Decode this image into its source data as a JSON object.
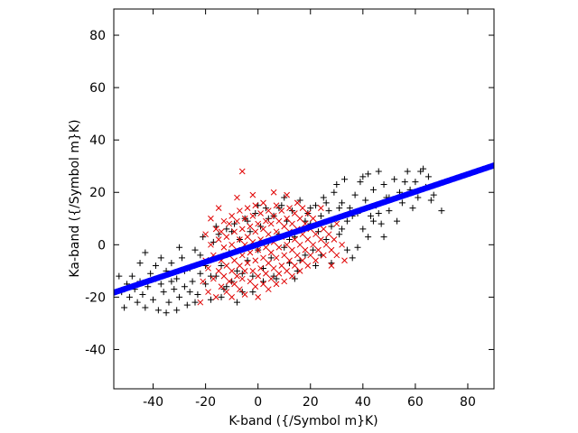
{
  "chart_data": {
    "type": "scatter",
    "title": "",
    "xlabel": "K-band ({/Symbol m}K)",
    "ylabel": "Ka-band ({/Symbol m}K)",
    "xlim": [
      -55,
      90
    ],
    "ylim": [
      -55,
      90
    ],
    "xticks": [
      -40,
      -20,
      0,
      20,
      40,
      60,
      80
    ],
    "yticks": [
      -40,
      -20,
      0,
      20,
      40,
      60,
      80
    ],
    "grid": false,
    "legend": "none",
    "series": [
      {
        "marker": "plus",
        "color": "#000000",
        "points": [
          [
            -52,
            -18
          ],
          [
            -50,
            -15
          ],
          [
            -49,
            -20
          ],
          [
            -48,
            -12
          ],
          [
            -47,
            -17
          ],
          [
            -46,
            -22
          ],
          [
            -45,
            -14
          ],
          [
            -44,
            -19
          ],
          [
            -43,
            -24
          ],
          [
            -42,
            -16
          ],
          [
            -41,
            -11
          ],
          [
            -40,
            -21
          ],
          [
            -39,
            -8
          ],
          [
            -38,
            -25
          ],
          [
            -37,
            -15
          ],
          [
            -36,
            -18
          ],
          [
            -35,
            -10
          ],
          [
            -34,
            -22
          ],
          [
            -33,
            -7
          ],
          [
            -32,
            -17
          ],
          [
            -31,
            -13
          ],
          [
            -30,
            -20
          ],
          [
            -29,
            -5
          ],
          [
            -28,
            -16
          ],
          [
            -27,
            -23
          ],
          [
            -26,
            -9
          ],
          [
            -25,
            -14
          ],
          [
            -24,
            -2
          ],
          [
            -23,
            -19
          ],
          [
            -22,
            -11
          ],
          [
            -21,
            3
          ],
          [
            -20,
            -15
          ],
          [
            -19,
            -6
          ],
          [
            -18,
            -21
          ],
          [
            -17,
            1
          ],
          [
            -16,
            -12
          ],
          [
            -15,
            4
          ],
          [
            -14,
            -8
          ],
          [
            -13,
            -17
          ],
          [
            -12,
            6
          ],
          [
            -11,
            -3
          ],
          [
            -10,
            -14
          ],
          [
            -9,
            8
          ],
          [
            -8,
            -10
          ],
          [
            -7,
            2
          ],
          [
            -6,
            -18
          ],
          [
            -5,
            10
          ],
          [
            -4,
            -6
          ],
          [
            -3,
            5
          ],
          [
            -2,
            -12
          ],
          [
            -1,
            12
          ],
          [
            0,
            -2
          ],
          [
            1,
            7
          ],
          [
            2,
            -9
          ],
          [
            3,
            14
          ],
          [
            4,
            1
          ],
          [
            5,
            -5
          ],
          [
            6,
            11
          ],
          [
            7,
            -13
          ],
          [
            8,
            4
          ],
          [
            9,
            15
          ],
          [
            10,
            -1
          ],
          [
            11,
            9
          ],
          [
            12,
            -7
          ],
          [
            13,
            13
          ],
          [
            14,
            3
          ],
          [
            15,
            -10
          ],
          [
            16,
            17
          ],
          [
            17,
            6
          ],
          [
            18,
            -4
          ],
          [
            19,
            12
          ],
          [
            20,
            8
          ],
          [
            21,
            -2
          ],
          [
            22,
            15
          ],
          [
            23,
            5
          ],
          [
            24,
            11
          ],
          [
            25,
            18
          ],
          [
            26,
            2
          ],
          [
            27,
            13
          ],
          [
            28,
            7
          ],
          [
            29,
            20
          ],
          [
            30,
            10
          ],
          [
            31,
            4
          ],
          [
            32,
            16
          ],
          [
            33,
            25
          ],
          [
            34,
            9
          ],
          [
            35,
            14
          ],
          [
            36,
            -5
          ],
          [
            37,
            19
          ],
          [
            38,
            12
          ],
          [
            39,
            24
          ],
          [
            40,
            6
          ],
          [
            41,
            17
          ],
          [
            42,
            27
          ],
          [
            43,
            11
          ],
          [
            44,
            21
          ],
          [
            45,
            15
          ],
          [
            46,
            28
          ],
          [
            47,
            8
          ],
          [
            48,
            23
          ],
          [
            49,
            18
          ],
          [
            50,
            13
          ],
          [
            52,
            25
          ],
          [
            54,
            20
          ],
          [
            55,
            16
          ],
          [
            57,
            28
          ],
          [
            58,
            21
          ],
          [
            60,
            24
          ],
          [
            61,
            18
          ],
          [
            63,
            29
          ],
          [
            64,
            22
          ],
          [
            65,
            26
          ],
          [
            67,
            19
          ],
          [
            70,
            13
          ],
          [
            -53,
            -12
          ],
          [
            -51,
            -24
          ],
          [
            -45,
            -7
          ],
          [
            -43,
            -3
          ],
          [
            -39,
            -13
          ],
          [
            -37,
            -5
          ],
          [
            -35,
            -26
          ],
          [
            -33,
            -14
          ],
          [
            -31,
            -25
          ],
          [
            -30,
            -1
          ],
          [
            -28,
            -10
          ],
          [
            -26,
            -18
          ],
          [
            -24,
            -22
          ],
          [
            -22,
            -4
          ],
          [
            -20,
            -8
          ],
          [
            -18,
            -12
          ],
          [
            -16,
            7
          ],
          [
            -14,
            -20
          ],
          [
            -12,
            -16
          ],
          [
            -10,
            5
          ],
          [
            -8,
            -22
          ],
          [
            -6,
            -11
          ],
          [
            -4,
            9
          ],
          [
            -2,
            -18
          ],
          [
            0,
            15
          ],
          [
            2,
            -14
          ],
          [
            4,
            10
          ],
          [
            6,
            -12
          ],
          [
            8,
            14
          ],
          [
            10,
            18
          ],
          [
            12,
            2
          ],
          [
            14,
            -13
          ],
          [
            16,
            -6
          ],
          [
            18,
            9
          ],
          [
            20,
            14
          ],
          [
            22,
            -8
          ],
          [
            24,
            -4
          ],
          [
            26,
            16
          ],
          [
            28,
            -7
          ],
          [
            30,
            23
          ],
          [
            32,
            6
          ],
          [
            34,
            -2
          ],
          [
            36,
            11
          ],
          [
            38,
            -1
          ],
          [
            40,
            26
          ],
          [
            42,
            3
          ],
          [
            44,
            9
          ],
          [
            46,
            12
          ],
          [
            48,
            3
          ],
          [
            50,
            18
          ],
          [
            53,
            9
          ],
          [
            56,
            24
          ],
          [
            59,
            14
          ],
          [
            62,
            28
          ],
          [
            66,
            17
          ],
          [
            31,
            14
          ]
        ]
      },
      {
        "marker": "x",
        "color": "#e00000",
        "points": [
          [
            -22,
            -22
          ],
          [
            -21,
            -14
          ],
          [
            -20,
            -6
          ],
          [
            -20,
            4
          ],
          [
            -19,
            -18
          ],
          [
            -19,
            -9
          ],
          [
            -18,
            0
          ],
          [
            -18,
            10
          ],
          [
            -17,
            -13
          ],
          [
            -17,
            -4
          ],
          [
            -16,
            6
          ],
          [
            -16,
            -20
          ],
          [
            -15,
            -10
          ],
          [
            -15,
            2
          ],
          [
            -15,
            14
          ],
          [
            -14,
            -16
          ],
          [
            -14,
            -6
          ],
          [
            -14,
            5
          ],
          [
            -13,
            -12
          ],
          [
            -13,
            -1
          ],
          [
            -13,
            9
          ],
          [
            -12,
            -18
          ],
          [
            -12,
            -8
          ],
          [
            -12,
            3
          ],
          [
            -11,
            -14
          ],
          [
            -11,
            -4
          ],
          [
            -11,
            8
          ],
          [
            -10,
            -20
          ],
          [
            -10,
            -10
          ],
          [
            -10,
            0
          ],
          [
            -10,
            11
          ],
          [
            -9,
            -15
          ],
          [
            -9,
            -6
          ],
          [
            -9,
            5
          ],
          [
            -8,
            -12
          ],
          [
            -8,
            -2
          ],
          [
            -8,
            9
          ],
          [
            -8,
            18
          ],
          [
            -7,
            -17
          ],
          [
            -7,
            -8
          ],
          [
            -7,
            2
          ],
          [
            -7,
            13
          ],
          [
            -6,
            -13
          ],
          [
            -6,
            -4
          ],
          [
            -6,
            6
          ],
          [
            -6,
            28
          ],
          [
            -5,
            -10
          ],
          [
            -5,
            0
          ],
          [
            -5,
            10
          ],
          [
            -5,
            -19
          ],
          [
            -4,
            -7
          ],
          [
            -4,
            3
          ],
          [
            -4,
            14
          ],
          [
            -3,
            -14
          ],
          [
            -3,
            -3
          ],
          [
            -3,
            7
          ],
          [
            -2,
            -10
          ],
          [
            -2,
            1
          ],
          [
            -2,
            11
          ],
          [
            -2,
            19
          ],
          [
            -1,
            -16
          ],
          [
            -1,
            -6
          ],
          [
            -1,
            5
          ],
          [
            -1,
            15
          ],
          [
            0,
            -12
          ],
          [
            0,
            -2
          ],
          [
            0,
            8
          ],
          [
            0,
            -20
          ],
          [
            1,
            -9
          ],
          [
            1,
            2
          ],
          [
            1,
            12
          ],
          [
            2,
            -15
          ],
          [
            2,
            -5
          ],
          [
            2,
            6
          ],
          [
            2,
            16
          ],
          [
            3,
            -11
          ],
          [
            3,
            -1
          ],
          [
            3,
            9
          ],
          [
            4,
            -17
          ],
          [
            4,
            -7
          ],
          [
            4,
            4
          ],
          [
            4,
            13
          ],
          [
            5,
            -13
          ],
          [
            5,
            -3
          ],
          [
            5,
            8
          ],
          [
            6,
            -9
          ],
          [
            6,
            1
          ],
          [
            6,
            11
          ],
          [
            6,
            20
          ],
          [
            7,
            -15
          ],
          [
            7,
            -5
          ],
          [
            7,
            5
          ],
          [
            7,
            15
          ],
          [
            8,
            -11
          ],
          [
            8,
            -1
          ],
          [
            8,
            9
          ],
          [
            9,
            -8
          ],
          [
            9,
            3
          ],
          [
            9,
            13
          ],
          [
            10,
            -14
          ],
          [
            10,
            -4
          ],
          [
            10,
            7
          ],
          [
            11,
            -10
          ],
          [
            11,
            0
          ],
          [
            11,
            10
          ],
          [
            11,
            19
          ],
          [
            12,
            -6
          ],
          [
            12,
            5
          ],
          [
            12,
            14
          ],
          [
            13,
            -12
          ],
          [
            13,
            -2
          ],
          [
            13,
            8
          ],
          [
            14,
            -8
          ],
          [
            14,
            2
          ],
          [
            14,
            12
          ],
          [
            15,
            -4
          ],
          [
            15,
            6
          ],
          [
            15,
            16
          ],
          [
            16,
            -10
          ],
          [
            16,
            0
          ],
          [
            16,
            10
          ],
          [
            17,
            -6
          ],
          [
            17,
            4
          ],
          [
            17,
            14
          ],
          [
            18,
            -2
          ],
          [
            18,
            8
          ],
          [
            19,
            -8
          ],
          [
            19,
            2
          ],
          [
            19,
            12
          ],
          [
            20,
            -4
          ],
          [
            20,
            6
          ],
          [
            21,
            0
          ],
          [
            21,
            10
          ],
          [
            22,
            -6
          ],
          [
            22,
            4
          ],
          [
            23,
            -2
          ],
          [
            23,
            8
          ],
          [
            24,
            2
          ],
          [
            25,
            -4
          ],
          [
            25,
            6
          ],
          [
            26,
            0
          ],
          [
            27,
            4
          ],
          [
            28,
            -2
          ],
          [
            29,
            2
          ],
          [
            30,
            -4
          ],
          [
            30,
            8
          ],
          [
            32,
            0
          ],
          [
            33,
            -6
          ],
          [
            24,
            14
          ],
          [
            28,
            -8
          ]
        ]
      },
      {
        "marker": "line-dots",
        "color": "#0000ff",
        "slope": 0.335,
        "intercept": 0.15
      }
    ]
  }
}
